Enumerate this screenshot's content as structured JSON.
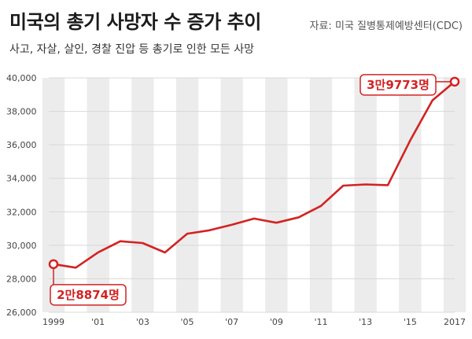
{
  "header": {
    "title": "미국의 총기 사망자 수 증가 추이",
    "source": "자료: 미국 질병통제예방센터(CDC)",
    "subtitle": "사고, 자살, 살인, 경찰 진압 등 총기로 인한 모든 사망"
  },
  "colors": {
    "line": "#d42222",
    "stripe": "#ececec",
    "grid": "#d8d8d8"
  },
  "chart_data": {
    "type": "line",
    "x": [
      1999,
      2000,
      2001,
      2002,
      2003,
      2004,
      2005,
      2006,
      2007,
      2008,
      2009,
      2010,
      2011,
      2012,
      2013,
      2014,
      2015,
      2016,
      2017
    ],
    "series": [
      {
        "values": [
          28874,
          28663,
          29573,
          30242,
          30136,
          29569,
          30694,
          30896,
          31224,
          31593,
          31347,
          31672,
          32351,
          33563,
          33636,
          33594,
          36252,
          38658,
          39773
        ]
      }
    ],
    "ylim": [
      26000,
      40000
    ],
    "yticks": [
      26000,
      28000,
      30000,
      32000,
      34000,
      36000,
      38000,
      40000
    ],
    "ytick_labels": [
      "26,000",
      "28,000",
      "30,000",
      "32,000",
      "34,000",
      "36,000",
      "38,000",
      "40,000"
    ],
    "xticks": [
      1999,
      2001,
      2003,
      2005,
      2007,
      2009,
      2011,
      2013,
      2015,
      2017
    ],
    "xtick_labels": [
      "1999",
      "'01",
      "'03",
      "'05",
      "'07",
      "'09",
      "'11",
      "'13",
      "'15",
      "2017"
    ],
    "annotations": [
      {
        "x": 1999,
        "y": 28874,
        "text": "2만8874명"
      },
      {
        "x": 2017,
        "y": 39773,
        "text": "3만9773명"
      }
    ],
    "grid": true
  }
}
